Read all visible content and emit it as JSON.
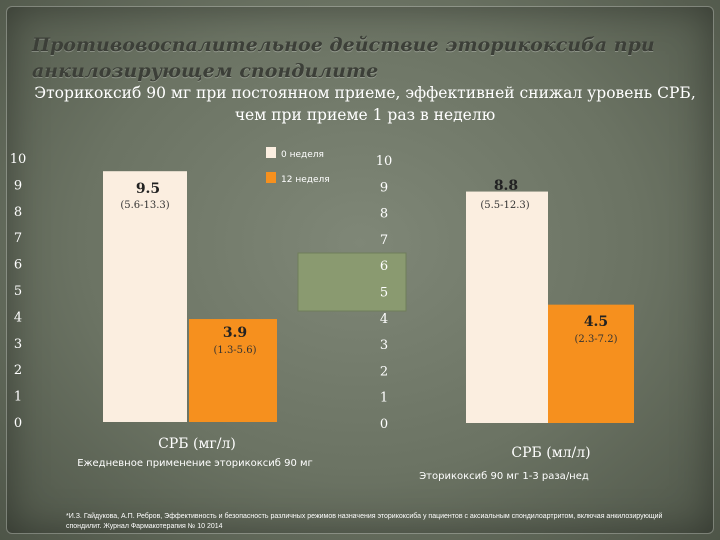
{
  "slide": {
    "title": "Противовоспалительное действие эторикоксиба при анкилозирующем спондилите",
    "subtitle": "Эторикоксиб 90 мг при постоянном приеме, эффективней снижал уровень СРБ, чем при приеме 1 раз в неделю",
    "footnote": "*И.З. Гайдукова, А.П. Ребров, Эффективность и безопасность различных режимов назначения эторикоксиба у пациентов с аксиальным спондилоартритом, включая анкилозирующий спондилит. Журнал Фармакотерапия № 10 2014"
  },
  "colors": {
    "week0": "#fbeee0",
    "week12": "#f6901e",
    "legend_box": "#8a9a70"
  },
  "chart_data": [
    {
      "type": "bar",
      "categories": [
        "0 неделя",
        "12 неделя"
      ],
      "values": [
        9.5,
        3.9
      ],
      "value_labels": [
        "9.5",
        "3.9"
      ],
      "range_labels": [
        "(5.6-13.3)",
        "(1.3-5.6)"
      ],
      "ylim": [
        0,
        10
      ],
      "yticks": [
        "0",
        "1",
        "2",
        "3",
        "4",
        "5",
        "6",
        "7",
        "8",
        "9",
        "10"
      ],
      "ylabel": "СРБ (мг/л)",
      "caption": "Ежедневное применение эторикоксиб 90 мг",
      "legend": [
        "0 неделя",
        "12 неделя"
      ],
      "legend_position": "top-right",
      "grid": false
    },
    {
      "type": "bar",
      "categories": [
        "0 неделя",
        "12 неделя"
      ],
      "values": [
        8.8,
        4.5
      ],
      "value_labels": [
        "8.8",
        "4.5"
      ],
      "range_labels": [
        "(5.5-12.3)",
        "(2.3-7.2)"
      ],
      "ylim": [
        0,
        10
      ],
      "yticks": [
        "0",
        "1",
        "2",
        "3",
        "4",
        "5",
        "6",
        "7",
        "8",
        "9",
        "10"
      ],
      "ylabel": "СРБ (мл/л)",
      "caption": "Эторикоксиб 90 мг 1-3 раза/нед",
      "grid": false
    }
  ]
}
